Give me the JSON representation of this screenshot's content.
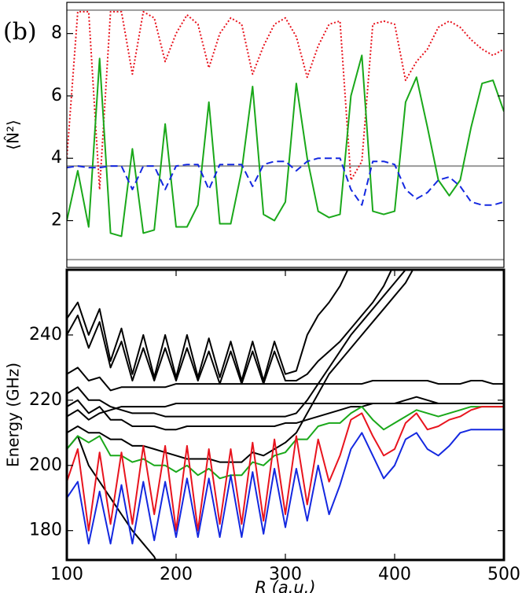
{
  "chart_data": [
    {
      "type": "line",
      "annotation": "(b)",
      "ylabel": "⟨N̂²⟩",
      "x": [
        100,
        110,
        120,
        130,
        140,
        150,
        160,
        170,
        180,
        190,
        200,
        210,
        220,
        230,
        240,
        250,
        260,
        270,
        280,
        290,
        300,
        310,
        320,
        330,
        340,
        350,
        360,
        370,
        380,
        390,
        400,
        410,
        420,
        430,
        440,
        450,
        460,
        470,
        480,
        490,
        500
      ],
      "xlim": [
        100,
        500
      ],
      "ylim": [
        0.5,
        9.0
      ],
      "yticks": [
        2,
        4,
        6,
        8
      ],
      "hlines": [
        8.75,
        3.75,
        0.75
      ],
      "hline_color": "#999999",
      "series": [
        {
          "color": "#e8141e",
          "linestyle": "dotted",
          "values": [
            4.0,
            8.7,
            8.7,
            3.0,
            8.7,
            8.7,
            6.7,
            8.7,
            8.5,
            7.1,
            8.0,
            8.6,
            8.3,
            6.9,
            8.0,
            8.5,
            8.3,
            6.7,
            7.6,
            8.3,
            8.5,
            7.9,
            6.6,
            7.6,
            8.3,
            8.4,
            3.3,
            3.9,
            8.3,
            8.4,
            8.3,
            6.5,
            7.1,
            7.5,
            8.2,
            8.4,
            8.2,
            7.8,
            7.5,
            7.3,
            7.5
          ]
        },
        {
          "color": "#1aa81a",
          "linestyle": "solid",
          "values": [
            2.0,
            3.6,
            1.8,
            7.2,
            1.6,
            1.5,
            4.3,
            1.6,
            1.7,
            5.1,
            1.8,
            1.8,
            2.5,
            5.8,
            1.9,
            1.9,
            3.6,
            6.3,
            2.2,
            2.0,
            2.6,
            6.4,
            4.0,
            2.3,
            2.1,
            2.2,
            6.0,
            7.3,
            2.3,
            2.2,
            2.3,
            5.8,
            6.6,
            5.0,
            3.3,
            2.8,
            3.3,
            5.0,
            6.4,
            6.5,
            5.5
          ]
        },
        {
          "color": "#1428e0",
          "linestyle": "dashed",
          "values": [
            3.7,
            3.75,
            3.7,
            3.7,
            3.75,
            3.75,
            3.0,
            3.75,
            3.75,
            3.0,
            3.75,
            3.8,
            3.8,
            3.0,
            3.8,
            3.8,
            3.8,
            3.1,
            3.8,
            3.9,
            3.9,
            3.6,
            3.9,
            4.0,
            4.0,
            4.0,
            3.0,
            2.5,
            3.9,
            3.9,
            3.8,
            3.0,
            2.7,
            2.9,
            3.3,
            3.4,
            3.1,
            2.6,
            2.5,
            2.5,
            2.6
          ]
        }
      ]
    },
    {
      "type": "line",
      "ylabel": "Energy (GHz)",
      "xlabel": "R (a.u.)",
      "x": [
        100,
        110,
        120,
        130,
        140,
        150,
        160,
        170,
        180,
        190,
        200,
        210,
        220,
        230,
        240,
        250,
        260,
        270,
        280,
        290,
        300,
        310,
        320,
        330,
        340,
        350,
        360,
        370,
        380,
        390,
        400,
        410,
        420,
        430,
        440,
        450,
        460,
        470,
        480,
        490,
        500
      ],
      "xlim": [
        100,
        500
      ],
      "ylim": [
        171,
        260
      ],
      "xticks": [
        100,
        200,
        300,
        400,
        500
      ],
      "yticks": [
        180,
        200,
        220,
        240
      ],
      "series": [
        {
          "color": "#000000",
          "linestyle": "solid",
          "values": [
            245,
            250,
            240,
            248,
            232,
            242,
            228,
            240,
            227,
            240,
            227,
            240,
            227,
            239,
            227,
            238,
            226,
            238,
            226,
            238,
            228,
            229,
            240,
            246,
            250,
            255,
            262,
            null,
            null,
            null,
            null,
            null,
            null,
            null,
            null,
            null,
            null,
            null,
            null,
            null,
            null
          ]
        },
        {
          "color": "#000000",
          "linestyle": "solid",
          "values": [
            240,
            246,
            236,
            244,
            230,
            238,
            226,
            236,
            226,
            236,
            226,
            236,
            226,
            235,
            225,
            235,
            225,
            235,
            225,
            235,
            226,
            226,
            228,
            232,
            235,
            238,
            242,
            246,
            250,
            255,
            262,
            null,
            null,
            null,
            null,
            null,
            null,
            null,
            null,
            null,
            null
          ]
        },
        {
          "color": "#000000",
          "linestyle": "solid",
          "values": [
            228,
            230,
            226,
            227,
            223,
            224,
            224,
            224,
            224,
            224,
            225,
            225,
            225,
            225,
            225,
            225,
            225,
            225,
            225,
            225,
            225,
            225,
            225,
            225,
            225,
            225,
            225,
            225,
            226,
            226,
            226,
            226,
            226,
            226,
            225,
            225,
            225,
            226,
            226,
            225,
            225
          ]
        },
        {
          "color": "#000000",
          "linestyle": "solid",
          "values": [
            215,
            217,
            214,
            216,
            217,
            218,
            218,
            218,
            218,
            218,
            219,
            219,
            219,
            219,
            219,
            219,
            219,
            219,
            219,
            219,
            219,
            219,
            219,
            219,
            219,
            219,
            219,
            219,
            219,
            219,
            219,
            219,
            219,
            219,
            219,
            219,
            219,
            219,
            219,
            219,
            219
          ]
        },
        {
          "color": "#000000",
          "linestyle": "solid",
          "values": [
            218,
            220,
            216,
            218,
            214,
            214,
            212,
            212,
            212,
            211,
            211,
            212,
            212,
            212,
            212,
            212,
            212,
            212,
            212,
            212,
            213,
            213,
            214,
            215,
            216,
            217,
            218,
            218,
            219,
            219,
            219,
            220,
            221,
            220,
            219,
            219,
            219,
            219,
            219,
            219,
            219
          ]
        },
        {
          "color": "#000000",
          "linestyle": "solid",
          "values": [
            210,
            212,
            210,
            210,
            208,
            208,
            206,
            206,
            205,
            204,
            203,
            202,
            202,
            202,
            201,
            201,
            201,
            204,
            203,
            205,
            207,
            210,
            216,
            222,
            228,
            232,
            236,
            240,
            244,
            248,
            252,
            256,
            262,
            null,
            null,
            null,
            null,
            null,
            null,
            null,
            null
          ]
        },
        {
          "color": "#000000",
          "linestyle": "solid",
          "values": [
            205,
            209,
            200,
            195,
            190,
            185,
            180,
            176,
            172,
            165,
            null,
            null,
            null,
            null,
            null,
            null,
            null,
            null,
            null,
            null,
            null,
            null,
            null,
            null,
            null,
            null,
            null,
            null,
            null,
            null,
            null,
            null,
            null,
            null,
            null,
            null,
            null,
            null,
            null,
            null,
            null
          ]
        },
        {
          "color": "#000000",
          "linestyle": "solid",
          "values": [
            222,
            224,
            220,
            220,
            218,
            217,
            216,
            216,
            216,
            215,
            215,
            215,
            215,
            215,
            215,
            215,
            215,
            215,
            215,
            215,
            215,
            216,
            220,
            225,
            230,
            235,
            240,
            244,
            248,
            252,
            256,
            260,
            264,
            null,
            null,
            null,
            null,
            null,
            null,
            null,
            null
          ]
        },
        {
          "color": "#1aa81a",
          "linestyle": "solid",
          "values": [
            205,
            209,
            207,
            209,
            203,
            203,
            201,
            202,
            200,
            200,
            198,
            200,
            197,
            199,
            196,
            197,
            197,
            201,
            200,
            203,
            204,
            208,
            208,
            212,
            213,
            213,
            216,
            218,
            214,
            211,
            213,
            215,
            217,
            216,
            215,
            216,
            217,
            218,
            218,
            218,
            218
          ]
        },
        {
          "color": "#e8141e",
          "linestyle": "solid",
          "values": [
            195,
            205,
            180,
            204,
            182,
            204,
            182,
            206,
            185,
            206,
            180,
            206,
            180,
            205,
            182,
            205,
            182,
            207,
            183,
            208,
            185,
            209,
            188,
            208,
            195,
            203,
            214,
            216,
            209,
            203,
            205,
            213,
            216,
            211,
            212,
            214,
            215,
            217,
            218,
            218,
            218
          ]
        },
        {
          "color": "#1428e0",
          "linestyle": "solid",
          "values": [
            190,
            195,
            176,
            192,
            176,
            194,
            176,
            195,
            177,
            195,
            178,
            196,
            178,
            196,
            178,
            197,
            178,
            198,
            179,
            199,
            181,
            199,
            183,
            200,
            185,
            194,
            205,
            210,
            203,
            196,
            200,
            208,
            210,
            205,
            203,
            206,
            210,
            211,
            211,
            211,
            211
          ]
        }
      ]
    }
  ]
}
